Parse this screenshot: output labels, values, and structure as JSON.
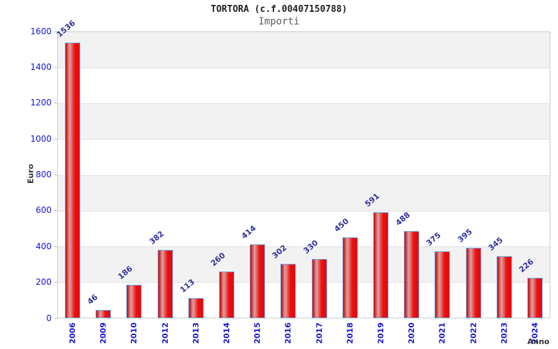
{
  "title": "TORTORA (c.f.00407150788)",
  "subtitle": "Importi",
  "chart_data": {
    "type": "bar",
    "title": "TORTORA (c.f.00407150788)",
    "subtitle": "Importi",
    "categories": [
      "2006",
      "2009",
      "2010",
      "2012",
      "2013",
      "2014",
      "2015",
      "2016",
      "2017",
      "2018",
      "2019",
      "2020",
      "2021",
      "2022",
      "2023",
      "2024"
    ],
    "values": [
      1536,
      46,
      186,
      382,
      113,
      260,
      414,
      302,
      330,
      450,
      591,
      488,
      375,
      395,
      345,
      226
    ],
    "xlabel": "Anno",
    "ylabel": "Euro",
    "ylim": [
      0,
      1600
    ],
    "ytick_step": 200,
    "grid": "alternating-horizontal-bands",
    "legend": "none",
    "bar_value_labels_shown": true
  },
  "colors": {
    "tick_label": "#1414cf",
    "value_label": "#333399",
    "bar_border": "#72a9e2",
    "bar_gradient": [
      "#c40505",
      "#dda2a2",
      "#ec1111",
      "#e30909"
    ],
    "band_fill": "#f2f2f2",
    "grid_line": "#e2e2e2",
    "plot_border": "#cccccc",
    "axis_title": "#333333",
    "title_color": "#1f1f1f",
    "subtitle_color": "#5e5e5e"
  }
}
